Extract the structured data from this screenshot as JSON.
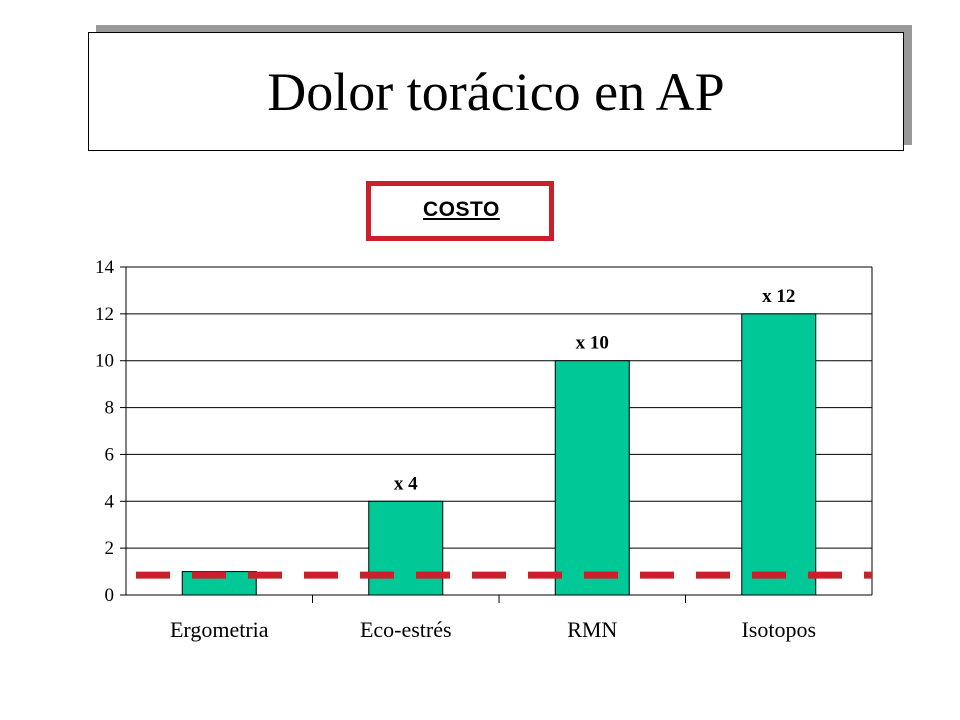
{
  "slide": {
    "title": "Dolor torácico en AP",
    "badge_label": "COSTO"
  },
  "colors": {
    "bar": "#00c896",
    "reference_line": "#cc1f2c",
    "badge_border": "#cc1f2c"
  },
  "chart_data": {
    "type": "bar",
    "categories": [
      "Ergometria",
      "Eco-estrés",
      "RMN",
      "Isotopos"
    ],
    "values": [
      1,
      4,
      10,
      12
    ],
    "data_labels": [
      "",
      "x 4",
      "x 10",
      "x 12"
    ],
    "y_ticks": [
      "0",
      "2",
      "4",
      "6",
      "8",
      "10",
      "12",
      "14"
    ],
    "ylim": [
      0,
      14
    ],
    "grid": true,
    "reference_line": {
      "value": 0.85,
      "style": "dashed"
    },
    "title": "",
    "xlabel": "",
    "ylabel": ""
  }
}
